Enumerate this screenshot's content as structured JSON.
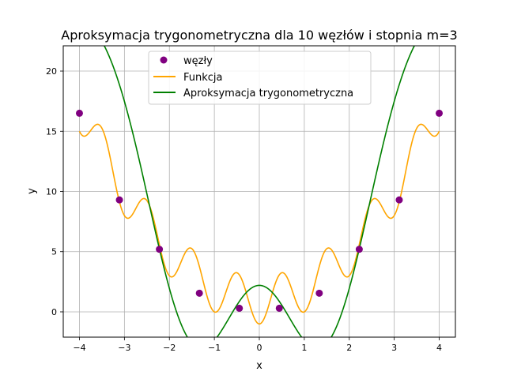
{
  "chart_data": {
    "type": "line",
    "title": "Aproksymacja trygonometryczna dla 10 węzłów i stopnia m=3",
    "xlabel": "x",
    "ylabel": "y",
    "xlim": [
      -4.36,
      4.36
    ],
    "ylim": [
      -2.1,
      22.1
    ],
    "xticks": [
      -4,
      -3,
      -2,
      -1,
      0,
      1,
      2,
      3,
      4
    ],
    "xtick_labels": [
      "−4",
      "−3",
      "−2",
      "−1",
      "0",
      "1",
      "2",
      "3",
      "4"
    ],
    "yticks": [
      0,
      5,
      10,
      15,
      20
    ],
    "ytick_labels": [
      "0",
      "5",
      "10",
      "15",
      "20"
    ],
    "grid": true,
    "legend_position": "top-center",
    "series": [
      {
        "name": "węzły",
        "kind": "scatter",
        "color": "#800080",
        "points": [
          [
            -4.0,
            16.5
          ],
          [
            -3.111,
            9.3
          ],
          [
            -2.222,
            5.2
          ],
          [
            -1.333,
            1.55
          ],
          [
            -0.444,
            0.3
          ],
          [
            0.444,
            0.3
          ],
          [
            1.333,
            1.55
          ],
          [
            2.222,
            5.2
          ],
          [
            3.111,
            9.3
          ],
          [
            4.0,
            16.5
          ]
        ]
      },
      {
        "name": "Funkcja",
        "kind": "line",
        "color": "#ffa500",
        "formula": "x^2 - 2*cos(2*pi*x) + 1",
        "x_range": [
          -4,
          4
        ]
      },
      {
        "name": "Aproksymacja trygonometryczna",
        "kind": "line",
        "color": "#008000",
        "formula": "7.55 - 12.5*cos(pi*x/4) + 5.6*cos(pi*x/2) + 1.55*cos(3*pi*x/4)",
        "x_range": [
          -4,
          4
        ]
      }
    ]
  }
}
